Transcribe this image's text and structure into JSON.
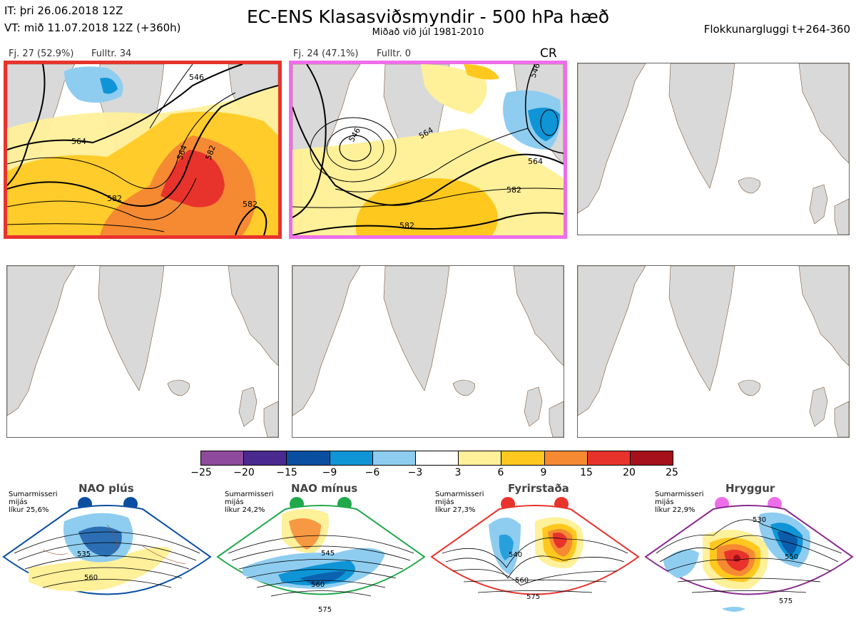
{
  "header": {
    "init_time": "IT: þri 26.06.2018 12Z",
    "valid_time": "VT: mið 11.07.2018 12Z  (+360h)",
    "title": "EC-ENS Klasasviðsmyndir - 500 hPa hæð",
    "subtitle": "Miðað við júl 1981-2010",
    "window": "Flokkunargluggi t+264-360"
  },
  "clusters": [
    {
      "label": "Fj. 27 (52.9%)",
      "member": "Fulltr. 34",
      "frame_color": "#e8332c",
      "contours": [
        "546",
        "564",
        "582",
        "582",
        "564",
        "582"
      ]
    },
    {
      "label": "Fj. 24 (47.1%)",
      "member": "Fulltr. 0",
      "frame_color": "#ee6ee9",
      "tag": "CR",
      "contours": [
        "546",
        "564",
        "564",
        "582",
        "582",
        "546"
      ]
    }
  ],
  "colorbar": {
    "colors": [
      "#8e4a9c",
      "#4b2a8f",
      "#0a4ea0",
      "#0f95d6",
      "#8ecdf0",
      "#ffffff",
      "#fff09a",
      "#ffc81e",
      "#f58a32",
      "#e8332c",
      "#a5101a"
    ],
    "ticks": [
      "−25",
      "−20",
      "−15",
      "−9",
      "−6",
      "−3",
      "3",
      "6",
      "9",
      "15",
      "20",
      "25"
    ]
  },
  "regimes": [
    {
      "name": "NAO plús",
      "season": "Sumarmisseri",
      "type": "mijás",
      "prob": "líkur 25,6%",
      "dot_color": "#0a4ea0",
      "frame_color": "#0a4ea0",
      "labels": [
        "535",
        "560"
      ]
    },
    {
      "name": "NAO mínus",
      "season": "Sumarmisseri",
      "type": "mijás",
      "prob": "líkur 24,2%",
      "dot_color": "#21a84a",
      "frame_color": "#21a84a",
      "labels": [
        "545",
        "560",
        "575"
      ]
    },
    {
      "name": "Fyrirstaða",
      "season": "Sumarmisseri",
      "type": "mijás",
      "prob": "líkur 27,3%",
      "dot_color": "#e8332c",
      "frame_color": "#e8332c",
      "labels": [
        "540",
        "560",
        "575"
      ]
    },
    {
      "name": "Hryggur",
      "season": "Sumarmisseri",
      "type": "mijás",
      "prob": "líkur 22,9%",
      "dot_color": "#ee6ee9",
      "frame_color": "#8a2a8f",
      "labels": [
        "530",
        "550",
        "575"
      ]
    }
  ]
}
